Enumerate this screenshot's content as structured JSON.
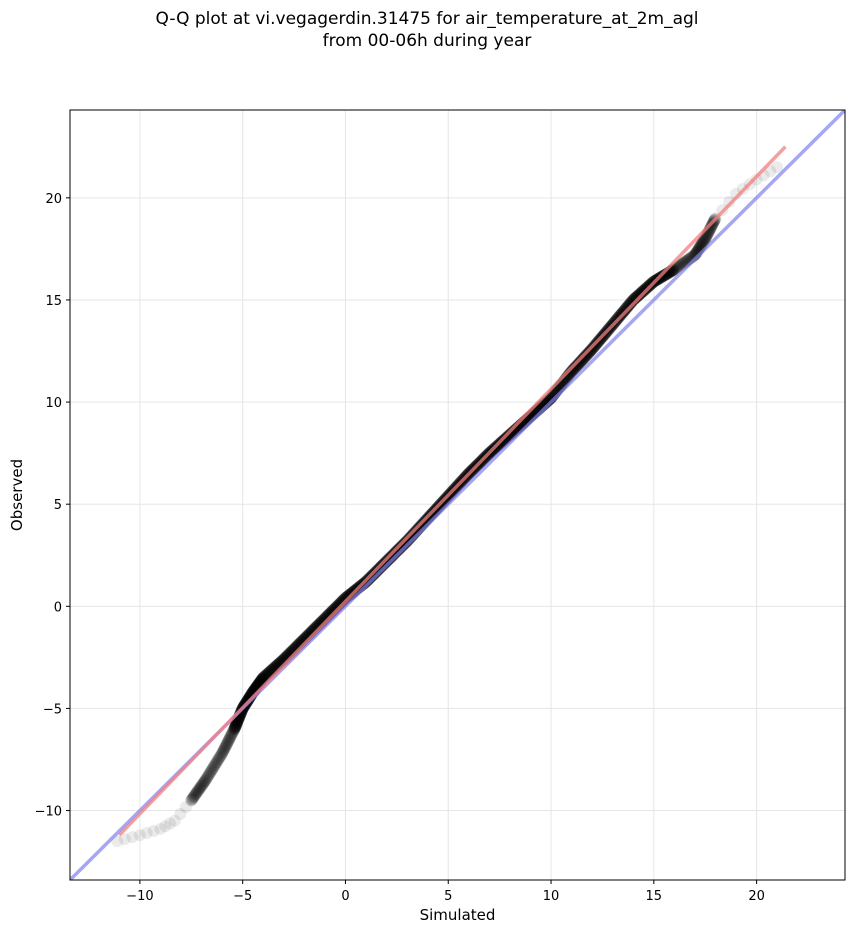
{
  "chart_data": {
    "type": "scatter",
    "title": "Q-Q plot at vi.vegagerdin.31475 for air_temperature_at_2m_agl",
    "subtitle": "from 00-06h during year",
    "xlabel": "Simulated",
    "ylabel": "Observed",
    "xlim": [
      -13.4,
      24.3
    ],
    "ylim": [
      -13.4,
      24.3
    ],
    "x_ticks": [
      -10,
      -5,
      0,
      5,
      10,
      15,
      20
    ],
    "y_ticks": [
      -10,
      -5,
      0,
      5,
      10,
      15,
      20
    ],
    "x_tick_labels": [
      "−10",
      "−5",
      "0",
      "5",
      "10",
      "15",
      "20"
    ],
    "y_tick_labels": [
      "−10",
      "−5",
      "0",
      "5",
      "10",
      "15",
      "20"
    ],
    "grid": true,
    "reference_line": {
      "description": "1:1 line",
      "color": "#8080f0",
      "from": [
        -13.4,
        -13.4
      ],
      "to": [
        24.3,
        24.3
      ]
    },
    "fit_line": {
      "color": "#f08080",
      "from": [
        -11.0,
        -11.2
      ],
      "to": [
        21.4,
        22.5
      ]
    },
    "qq_curve": [
      [
        -11.1,
        -11.5
      ],
      [
        -10.0,
        -11.2
      ],
      [
        -9.0,
        -10.9
      ],
      [
        -8.3,
        -10.5
      ],
      [
        -7.5,
        -9.5
      ],
      [
        -6.8,
        -8.5
      ],
      [
        -6.0,
        -7.2
      ],
      [
        -5.4,
        -6.0
      ],
      [
        -5.0,
        -5.0
      ],
      [
        -4.5,
        -4.2
      ],
      [
        -4.0,
        -3.5
      ],
      [
        -3.0,
        -2.6
      ],
      [
        -2.0,
        -1.6
      ],
      [
        -1.0,
        -0.6
      ],
      [
        0.0,
        0.4
      ],
      [
        1.0,
        1.2
      ],
      [
        2.0,
        2.2
      ],
      [
        3.0,
        3.2
      ],
      [
        4.0,
        4.3
      ],
      [
        5.0,
        5.4
      ],
      [
        6.0,
        6.5
      ],
      [
        7.0,
        7.5
      ],
      [
        8.0,
        8.4
      ],
      [
        9.0,
        9.3
      ],
      [
        10.0,
        10.2
      ],
      [
        11.0,
        11.5
      ],
      [
        12.0,
        12.6
      ],
      [
        13.0,
        13.8
      ],
      [
        14.0,
        15.0
      ],
      [
        15.0,
        15.9
      ],
      [
        16.0,
        16.5
      ],
      [
        17.0,
        17.2
      ],
      [
        17.5,
        18.0
      ],
      [
        18.0,
        19.0
      ],
      [
        19.0,
        20.2
      ],
      [
        20.0,
        20.9
      ],
      [
        21.0,
        21.5
      ]
    ],
    "colors": {
      "points": "#000000",
      "reference": "#8080f0",
      "fit": "#f08080",
      "grid": "#e6e6e6"
    }
  }
}
